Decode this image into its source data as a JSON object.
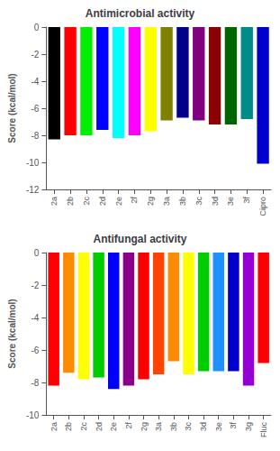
{
  "chart_data": [
    {
      "type": "bar",
      "title": "Antimicrobial activity",
      "categories": [
        "2a",
        "2b",
        "2c",
        "2d",
        "2e",
        "2f",
        "2g",
        "3a",
        "3b",
        "3c",
        "3d",
        "3e",
        "3f",
        "Cipro"
      ],
      "values": [
        -8.3,
        -8.0,
        -8.0,
        -7.6,
        -8.2,
        -8.0,
        -7.7,
        -6.9,
        -6.7,
        -6.9,
        -7.2,
        -7.2,
        -6.8,
        -10.1
      ],
      "colors": [
        "#000000",
        "#ff0000",
        "#00ee00",
        "#0000ff",
        "#00ffff",
        "#ff00ff",
        "#ffff00",
        "#808000",
        "#00008b",
        "#800080",
        "#8b0000",
        "#006400",
        "#008b8b",
        "#0000cd"
      ],
      "ylabel": "Score (kcal/mol)",
      "ylim": [
        -12,
        0
      ],
      "yticks": [
        0,
        -2,
        -4,
        -6,
        -8,
        -10,
        -12
      ],
      "grid": false
    },
    {
      "type": "bar",
      "title": "Antifungal activity",
      "categories": [
        "2a",
        "2b",
        "2c",
        "2d",
        "2e",
        "2f",
        "2g",
        "3a",
        "3b",
        "3c",
        "3d",
        "3e",
        "3f",
        "3g",
        "Fluc"
      ],
      "values": [
        -8.2,
        -7.4,
        -7.8,
        -7.7,
        -8.4,
        -8.2,
        -7.8,
        -7.5,
        -6.7,
        -7.5,
        -7.3,
        -7.3,
        -7.3,
        -8.2,
        -6.8
      ],
      "colors": [
        "#ff0000",
        "#ff8c00",
        "#ffff00",
        "#00cc00",
        "#0000ff",
        "#8b008b",
        "#ff0000",
        "#ff4500",
        "#ff8c00",
        "#ffff00",
        "#00cc00",
        "#1e90ff",
        "#0000cd",
        "#9400d3",
        "#ff0000"
      ],
      "ylabel": "Score (kcal/mol)",
      "ylim": [
        -10,
        0
      ],
      "yticks": [
        0,
        -2,
        -4,
        -6,
        -8,
        -10
      ],
      "grid": false
    }
  ]
}
